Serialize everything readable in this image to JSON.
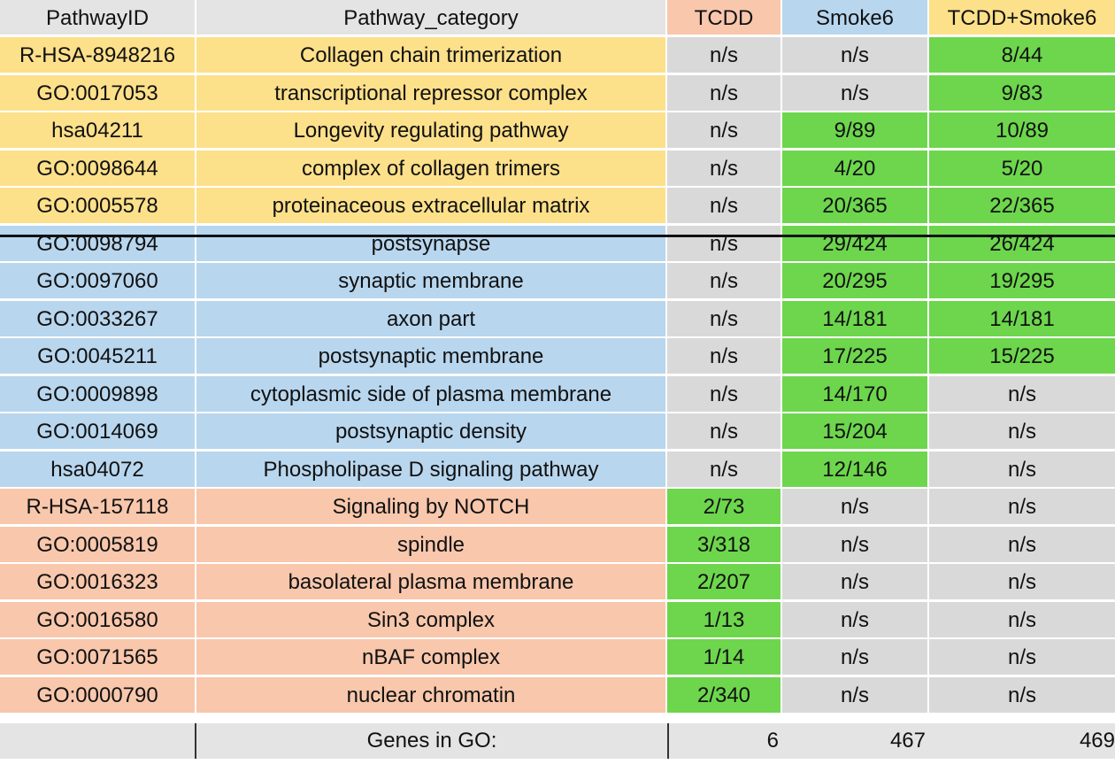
{
  "headers": {
    "pathway_id": "PathwayID",
    "category": "Pathway_category",
    "tcdd": "TCDD",
    "smoke6": "Smoke6",
    "combined": "TCDD+Smoke6"
  },
  "colors": {
    "yellow_group": "#fde08a",
    "blue_group": "#b8d6ee",
    "peach_group": "#f8c7ac",
    "significant": "#6dd64d",
    "not_significant": "#d9d9d9",
    "header_gray": "#e4e4e4"
  },
  "rows": [
    {
      "group": "yellow",
      "id": "R-HSA-8948216",
      "category": "Collagen chain trimerization",
      "tcdd": "n/s",
      "smoke6": "n/s",
      "combined": "8/44"
    },
    {
      "group": "yellow",
      "id": "GO:0017053",
      "category": "transcriptional repressor complex",
      "tcdd": "n/s",
      "smoke6": "n/s",
      "combined": "9/83"
    },
    {
      "group": "yellow",
      "id": "hsa04211",
      "category": "Longevity regulating pathway",
      "tcdd": "n/s",
      "smoke6": "9/89",
      "combined": "10/89"
    },
    {
      "group": "yellow",
      "id": "GO:0098644",
      "category": "complex of collagen trimers",
      "tcdd": "n/s",
      "smoke6": "4/20",
      "combined": "5/20"
    },
    {
      "group": "yellow",
      "id": "GO:0005578",
      "category": "proteinaceous extracellular matrix",
      "tcdd": "n/s",
      "smoke6": "20/365",
      "combined": "22/365"
    },
    {
      "group": "blue",
      "id": "GO:0098794",
      "category": "postsynapse",
      "tcdd": "n/s",
      "smoke6": "29/424",
      "combined": "26/424"
    },
    {
      "group": "blue",
      "id": "GO:0097060",
      "category": "synaptic membrane",
      "tcdd": "n/s",
      "smoke6": "20/295",
      "combined": "19/295"
    },
    {
      "group": "blue",
      "id": "GO:0033267",
      "category": "axon part",
      "tcdd": "n/s",
      "smoke6": "14/181",
      "combined": "14/181"
    },
    {
      "group": "blue",
      "id": "GO:0045211",
      "category": "postsynaptic membrane",
      "tcdd": "n/s",
      "smoke6": "17/225",
      "combined": "15/225"
    },
    {
      "group": "blue",
      "id": "GO:0009898",
      "category": "cytoplasmic side of plasma membrane",
      "tcdd": "n/s",
      "smoke6": "14/170",
      "combined": "n/s"
    },
    {
      "group": "blue",
      "id": "GO:0014069",
      "category": "postsynaptic density",
      "tcdd": "n/s",
      "smoke6": "15/204",
      "combined": "n/s"
    },
    {
      "group": "blue",
      "id": "hsa04072",
      "category": "Phospholipase D signaling pathway",
      "tcdd": "n/s",
      "smoke6": "12/146",
      "combined": "n/s"
    },
    {
      "group": "peach",
      "id": "R-HSA-157118",
      "category": "Signaling by NOTCH",
      "tcdd": "2/73",
      "smoke6": "n/s",
      "combined": "n/s"
    },
    {
      "group": "peach",
      "id": "GO:0005819",
      "category": "spindle",
      "tcdd": "3/318",
      "smoke6": "n/s",
      "combined": "n/s"
    },
    {
      "group": "peach",
      "id": "GO:0016323",
      "category": "basolateral plasma membrane",
      "tcdd": "2/207",
      "smoke6": "n/s",
      "combined": "n/s"
    },
    {
      "group": "peach",
      "id": "GO:0016580",
      "category": "Sin3 complex",
      "tcdd": "1/13",
      "smoke6": "n/s",
      "combined": "n/s"
    },
    {
      "group": "peach",
      "id": "GO:0071565",
      "category": "nBAF complex",
      "tcdd": "1/14",
      "smoke6": "n/s",
      "combined": "n/s"
    },
    {
      "group": "peach",
      "id": "GO:0000790",
      "category": "nuclear chromatin",
      "tcdd": "2/340",
      "smoke6": "n/s",
      "combined": "n/s"
    }
  ],
  "footer": {
    "label": "Genes in GO:",
    "tcdd": "6",
    "smoke6": "467",
    "combined": "469"
  }
}
